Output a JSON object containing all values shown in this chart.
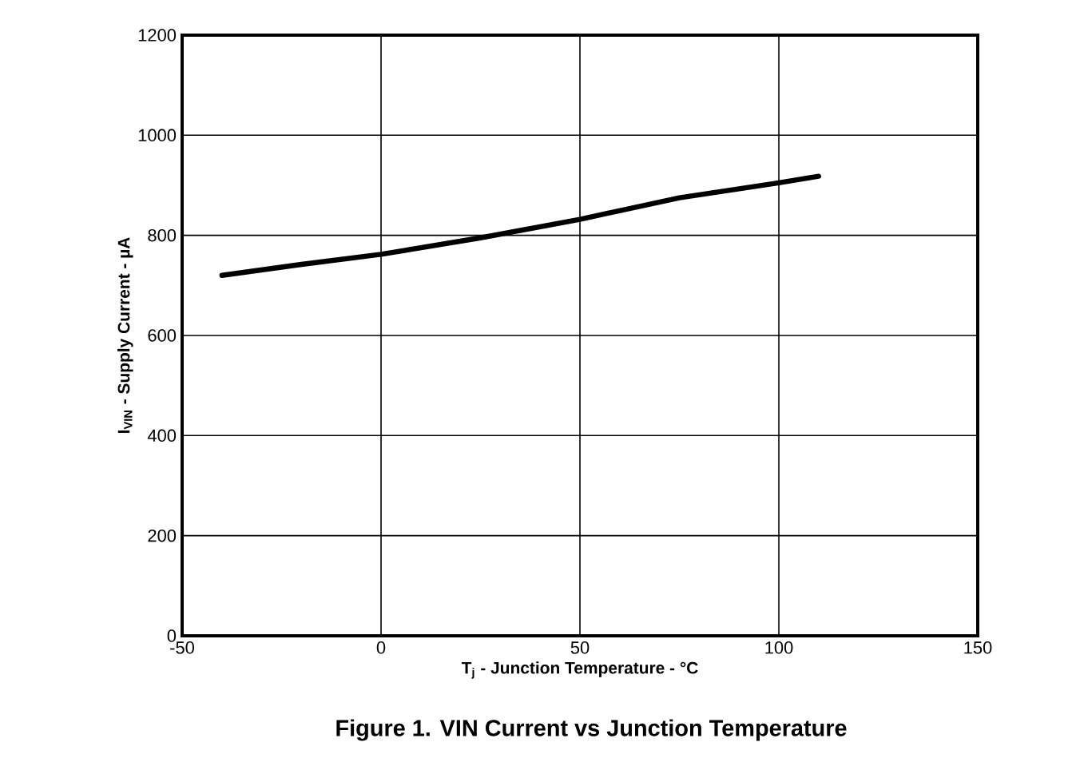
{
  "chart_data": {
    "type": "line",
    "title": "Figure 1. VIN Current vs Junction Temperature",
    "xlabel": "T$_{j}$ - Junction Temperature - °C",
    "ylabel": "I$_{VIN}$ - Supply Current - µA",
    "series": [
      {
        "color": "#000000",
        "x": [
          -40,
          -20,
          0,
          25,
          50,
          75,
          100,
          110
        ],
        "values": [
          720,
          742,
          762,
          795,
          832,
          875,
          905,
          918
        ]
      }
    ],
    "xlim": [
      -50,
      150
    ],
    "xticks": [
      -50,
      0,
      50,
      100,
      150
    ],
    "ylim": [
      0,
      1200
    ],
    "yticks": [
      0,
      200,
      400,
      600,
      800,
      1000,
      1200
    ],
    "grid": true,
    "marker": "none",
    "line_style": "solid"
  }
}
